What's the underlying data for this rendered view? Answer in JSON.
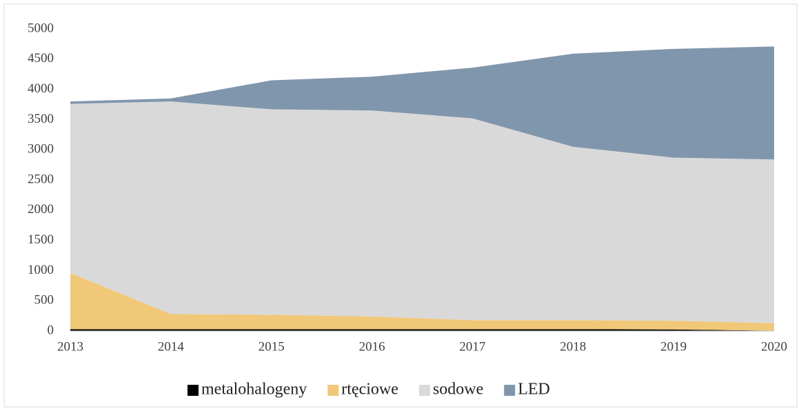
{
  "chart_data": {
    "type": "stacked_area",
    "categories": [
      "2013",
      "2014",
      "2015",
      "2016",
      "2017",
      "2018",
      "2019",
      "2020"
    ],
    "series": [
      {
        "name": "metalohalogeny",
        "color": "#000000",
        "values": [
          30,
          30,
          30,
          30,
          30,
          30,
          25,
          5
        ]
      },
      {
        "name": "rtęciowe",
        "color": "#f0c878",
        "values": [
          930,
          250,
          240,
          210,
          150,
          150,
          145,
          125
        ]
      },
      {
        "name": "sodowe",
        "color": "#d9d9d9",
        "values": [
          2800,
          3520,
          3400,
          3410,
          3340,
          2870,
          2700,
          2710
        ]
      },
      {
        "name": "LED",
        "color": "#8096ac",
        "values": [
          40,
          50,
          480,
          560,
          840,
          1540,
          1800,
          1870
        ]
      }
    ],
    "ylim": [
      0,
      5000
    ],
    "yticks": [
      0,
      500,
      1000,
      1500,
      2000,
      2500,
      3000,
      3500,
      4000,
      4500,
      5000
    ],
    "legend": "bottom"
  }
}
